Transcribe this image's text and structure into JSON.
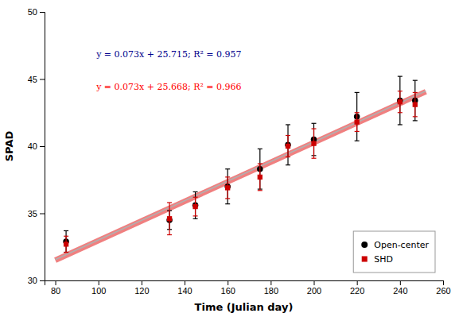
{
  "chart_data": {
    "type": "scatter",
    "xlabel": "Time (Julian day)",
    "ylabel": "SPAD",
    "xlim": [
      75,
      260
    ],
    "ylim": [
      30,
      50
    ],
    "xticks": [
      80,
      100,
      120,
      140,
      160,
      180,
      200,
      220,
      240,
      260
    ],
    "yticks": [
      30,
      35,
      40,
      45,
      50
    ],
    "legend": "lower right",
    "series": [
      {
        "name": "Open-center",
        "type": "scatter",
        "marker": "circle",
        "color": "#000000",
        "x": [
          85,
          133,
          145,
          160,
          175,
          188,
          200,
          220,
          240,
          247
        ],
        "values": [
          32.9,
          34.5,
          35.6,
          37.0,
          38.3,
          40.1,
          40.5,
          42.2,
          43.4,
          43.4
        ],
        "errors": [
          0.8,
          0.7,
          1.0,
          1.3,
          1.5,
          1.5,
          1.2,
          1.8,
          1.8,
          1.5
        ]
      },
      {
        "name": "SHD",
        "type": "scatter",
        "marker": "square",
        "color": "#cc0000",
        "x": [
          85,
          133,
          145,
          160,
          175,
          188,
          200,
          220,
          240,
          247
        ],
        "values": [
          32.7,
          34.6,
          35.5,
          36.9,
          37.7,
          40.0,
          40.2,
          41.8,
          43.3,
          43.1
        ],
        "errors": [
          0.6,
          1.2,
          0.7,
          0.8,
          1.0,
          0.8,
          1.1,
          0.7,
          0.8,
          0.9
        ]
      },
      {
        "type": "line",
        "color": "#b0b0b0",
        "x": [
          80,
          252
        ],
        "values": [
          31.555,
          44.111
        ]
      },
      {
        "type": "line",
        "color": "#f08080",
        "x": [
          80,
          252
        ],
        "values": [
          31.508,
          44.064
        ]
      }
    ],
    "annotations": [
      {
        "text": "y = 0.073x + 25.715; R² = 0.957",
        "color": "#00008B"
      },
      {
        "text": "y = 0.073x + 25.668; R² = 0.966",
        "color": "#ff0000"
      }
    ]
  }
}
